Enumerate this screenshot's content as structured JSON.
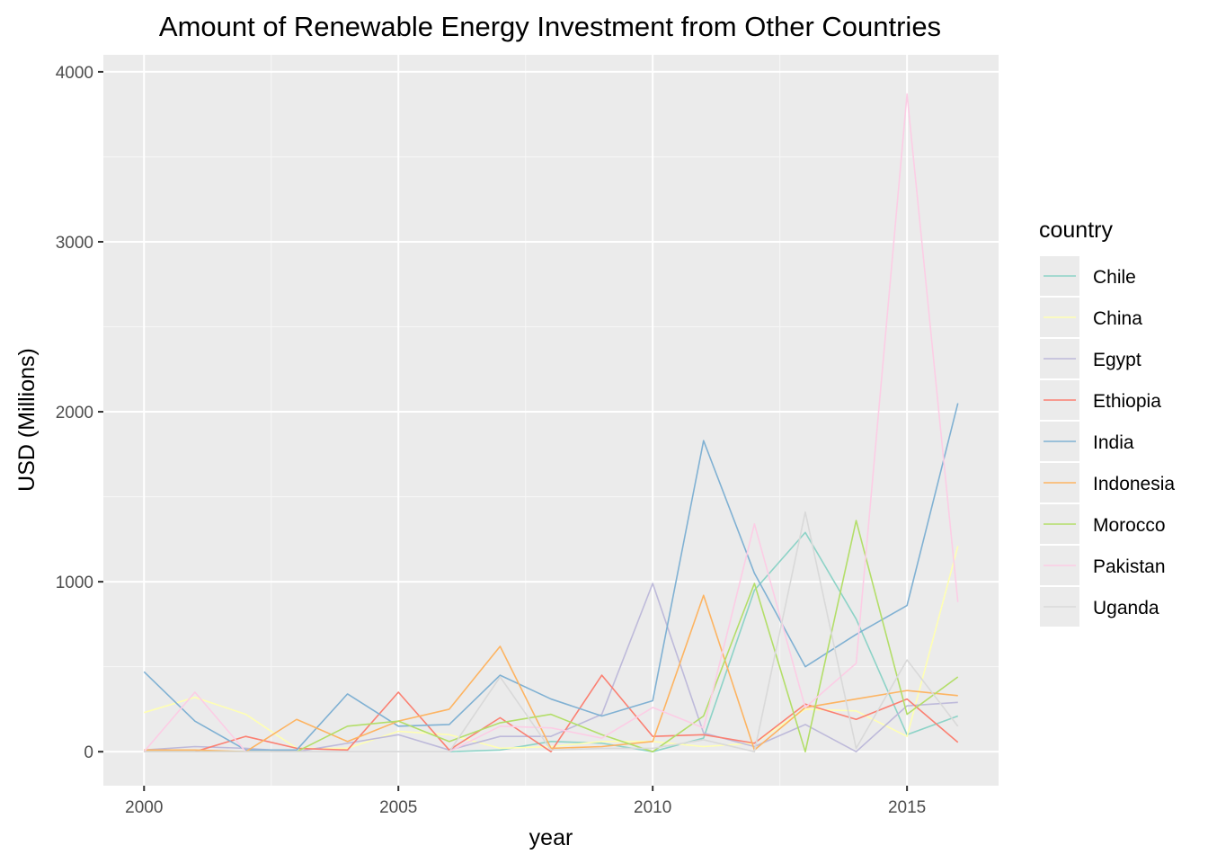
{
  "chart_data": {
    "type": "line",
    "title": "Amount of Renewable Energy Investment from Other Countries",
    "xlabel": "year",
    "ylabel": "USD (Millions)",
    "xlim": [
      1999.2,
      2016.8
    ],
    "ylim": [
      -200,
      4100
    ],
    "x_ticks": [
      2000,
      2005,
      2010,
      2015
    ],
    "y_ticks": [
      0,
      1000,
      2000,
      3000,
      4000
    ],
    "grid": true,
    "legend_title": "country",
    "legend_position": "right",
    "x": [
      2000,
      2001,
      2002,
      2003,
      2004,
      2005,
      2006,
      2007,
      2008,
      2009,
      2010,
      2011,
      2012,
      2013,
      2014,
      2015,
      2016
    ],
    "series": [
      {
        "name": "Chile",
        "color": "#8DD3C7",
        "values": [
          0,
          0,
          0,
          0,
          0,
          0,
          0,
          10,
          60,
          50,
          0,
          80,
          950,
          1290,
          780,
          100,
          210
        ]
      },
      {
        "name": "China",
        "color": "#FFFFB3",
        "values": [
          230,
          320,
          220,
          20,
          20,
          120,
          100,
          20,
          30,
          60,
          60,
          30,
          50,
          250,
          240,
          90,
          1210
        ]
      },
      {
        "name": "Egypt",
        "color": "#BEBADA",
        "values": [
          10,
          30,
          20,
          0,
          50,
          100,
          10,
          90,
          90,
          220,
          990,
          110,
          30,
          160,
          0,
          270,
          290
        ]
      },
      {
        "name": "Ethiopia",
        "color": "#FB8072",
        "values": [
          0,
          0,
          90,
          20,
          10,
          350,
          10,
          200,
          0,
          450,
          90,
          100,
          50,
          280,
          190,
          310,
          55
        ]
      },
      {
        "name": "India",
        "color": "#80B1D3",
        "values": [
          470,
          180,
          10,
          10,
          340,
          150,
          160,
          450,
          310,
          210,
          300,
          1830,
          1050,
          500,
          690,
          860,
          2050
        ]
      },
      {
        "name": "Indonesia",
        "color": "#FDB462",
        "values": [
          10,
          10,
          0,
          190,
          60,
          180,
          250,
          620,
          20,
          30,
          60,
          920,
          10,
          260,
          310,
          360,
          330
        ]
      },
      {
        "name": "Morocco",
        "color": "#B3DE69",
        "values": [
          0,
          0,
          0,
          0,
          150,
          180,
          60,
          170,
          220,
          100,
          0,
          210,
          990,
          0,
          1360,
          220,
          440
        ]
      },
      {
        "name": "Pakistan",
        "color": "#FCCDE5",
        "values": [
          0,
          350,
          0,
          0,
          0,
          0,
          0,
          150,
          140,
          80,
          260,
          140,
          1340,
          260,
          520,
          3870,
          880
        ]
      },
      {
        "name": "Uganda",
        "color": "#D9D9D9",
        "values": [
          0,
          0,
          0,
          0,
          0,
          0,
          0,
          440,
          10,
          20,
          20,
          70,
          0,
          1410,
          20,
          540,
          150
        ]
      }
    ]
  }
}
